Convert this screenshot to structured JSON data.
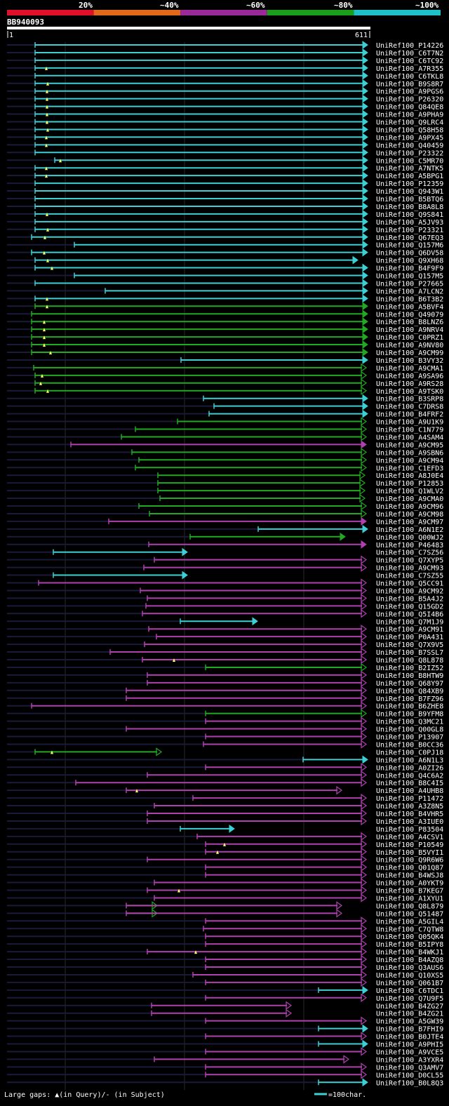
{
  "query": {
    "id": "BB940093",
    "start_label": "1",
    "end_label": "611",
    "length": 611
  },
  "legend": {
    "identity_bins": [
      {
        "label": "20%",
        "color": "#e0102a"
      },
      {
        "label": "~40%",
        "color": "#e06a1a"
      },
      {
        "label": "~60%",
        "color": "#9a2a9a"
      },
      {
        "label": "~80%",
        "color": "#1aa01a"
      },
      {
        "label": "~100%",
        "color": "#20c0c8"
      }
    ]
  },
  "colors": {
    "cyan": "#3ccfd4",
    "green": "#22a822",
    "magenta": "#b040b0",
    "guide": "#1a1a3a",
    "gap": "#ffff66"
  },
  "footer": {
    "text": "Large gaps: ▲(in Query)/- (in Subject)",
    "scale_text": "=100char."
  },
  "hits": [
    {
      "name": "UniRef100_P14226",
      "s": 50,
      "e": 522,
      "c": "cyan",
      "a": 1,
      "g": []
    },
    {
      "name": "UniRef100_C6T7N2",
      "s": 50,
      "e": 522,
      "c": "cyan",
      "a": 1,
      "g": []
    },
    {
      "name": "UniRef100_C6TC92",
      "s": 50,
      "e": 522,
      "c": "cyan",
      "a": 1,
      "g": []
    },
    {
      "name": "UniRef100_A7R355",
      "s": 50,
      "e": 522,
      "c": "cyan",
      "a": 1,
      "g": [
        66
      ]
    },
    {
      "name": "UniRef100_C6TKL8",
      "s": 50,
      "e": 522,
      "c": "cyan",
      "a": 1,
      "g": []
    },
    {
      "name": "UniRef100_B9S8R7",
      "s": 50,
      "e": 522,
      "c": "cyan",
      "a": 1,
      "g": [
        68
      ]
    },
    {
      "name": "UniRef100_A9PGS6",
      "s": 50,
      "e": 522,
      "c": "cyan",
      "a": 1,
      "g": [
        67
      ]
    },
    {
      "name": "UniRef100_P26320",
      "s": 50,
      "e": 522,
      "c": "cyan",
      "a": 1,
      "g": [
        67
      ]
    },
    {
      "name": "UniRef100_Q84QE8",
      "s": 50,
      "e": 522,
      "c": "cyan",
      "a": 1,
      "g": [
        67
      ]
    },
    {
      "name": "UniRef100_A9PHA9",
      "s": 50,
      "e": 522,
      "c": "cyan",
      "a": 1,
      "g": [
        67
      ]
    },
    {
      "name": "UniRef100_Q9LRC4",
      "s": 50,
      "e": 522,
      "c": "cyan",
      "a": 1,
      "g": [
        67
      ]
    },
    {
      "name": "UniRef100_Q58H58",
      "s": 50,
      "e": 522,
      "c": "cyan",
      "a": 1,
      "g": [
        68
      ]
    },
    {
      "name": "UniRef100_A9PX45",
      "s": 50,
      "e": 522,
      "c": "cyan",
      "a": 1,
      "g": [
        66
      ]
    },
    {
      "name": "UniRef100_Q40459",
      "s": 50,
      "e": 522,
      "c": "cyan",
      "a": 1,
      "g": [
        66
      ]
    },
    {
      "name": "UniRef100_P23322",
      "s": 50,
      "e": 522,
      "c": "cyan",
      "a": 1,
      "g": []
    },
    {
      "name": "UniRef100_C5MR70",
      "s": 78,
      "e": 522,
      "c": "cyan",
      "a": 1,
      "g": [
        86
      ]
    },
    {
      "name": "UniRef100_A7NTK5",
      "s": 50,
      "e": 522,
      "c": "cyan",
      "a": 1,
      "g": [
        66
      ]
    },
    {
      "name": "UniRef100_A5BPG1",
      "s": 50,
      "e": 522,
      "c": "cyan",
      "a": 1,
      "g": [
        66
      ]
    },
    {
      "name": "UniRef100_P12359",
      "s": 50,
      "e": 522,
      "c": "cyan",
      "a": 1,
      "g": []
    },
    {
      "name": "UniRef100_Q943W1",
      "s": 50,
      "e": 522,
      "c": "cyan",
      "a": 1,
      "g": []
    },
    {
      "name": "UniRef100_B5BTQ6",
      "s": 50,
      "e": 522,
      "c": "cyan",
      "a": 1,
      "g": []
    },
    {
      "name": "UniRef100_B8A8L8",
      "s": 50,
      "e": 522,
      "c": "cyan",
      "a": 1,
      "g": []
    },
    {
      "name": "UniRef100_Q9S841",
      "s": 50,
      "e": 522,
      "c": "cyan",
      "a": 1,
      "g": [
        67
      ]
    },
    {
      "name": "UniRef100_A5JV93",
      "s": 50,
      "e": 522,
      "c": "cyan",
      "a": 1,
      "g": []
    },
    {
      "name": "UniRef100_P23321",
      "s": 50,
      "e": 522,
      "c": "cyan",
      "a": 1,
      "g": [
        68
      ]
    },
    {
      "name": "UniRef100_Q67EQ3",
      "s": 45,
      "e": 522,
      "c": "cyan",
      "a": 1,
      "g": [
        64
      ]
    },
    {
      "name": "UniRef100_Q157M6",
      "s": 106,
      "e": 522,
      "c": "cyan",
      "a": 1,
      "g": []
    },
    {
      "name": "UniRef100_Q6DV58",
      "s": 45,
      "e": 522,
      "c": "cyan",
      "a": 1,
      "g": [
        63
      ]
    },
    {
      "name": "UniRef100_Q9XH68",
      "s": 50,
      "e": 508,
      "c": "cyan",
      "a": 1,
      "g": [
        68
      ]
    },
    {
      "name": "UniRef100_B4F9F9",
      "s": 50,
      "e": 522,
      "c": "cyan",
      "a": 1,
      "g": [
        74
      ]
    },
    {
      "name": "UniRef100_Q157M5",
      "s": 106,
      "e": 522,
      "c": "cyan",
      "a": 1,
      "g": []
    },
    {
      "name": "UniRef100_P27665",
      "s": 50,
      "e": 522,
      "c": "cyan",
      "a": 1,
      "g": []
    },
    {
      "name": "UniRef100_A7LCN2",
      "s": 150,
      "e": 522,
      "c": "cyan",
      "a": 1,
      "g": []
    },
    {
      "name": "UniRef100_B6T3B2",
      "s": 50,
      "e": 522,
      "c": "cyan",
      "a": 1,
      "g": [
        67
      ]
    },
    {
      "name": "UniRef100_A5BVF4",
      "s": 50,
      "e": 522,
      "c": "green",
      "a": 1,
      "g": [
        67
      ]
    },
    {
      "name": "UniRef100_Q49079",
      "s": 45,
      "e": 522,
      "c": "green",
      "a": 1,
      "g": []
    },
    {
      "name": "UniRef100_B8LNZ6",
      "s": 45,
      "e": 522,
      "c": "green",
      "a": 1,
      "g": [
        63
      ]
    },
    {
      "name": "UniRef100_A9NRV4",
      "s": 45,
      "e": 522,
      "c": "green",
      "a": 1,
      "g": [
        63
      ]
    },
    {
      "name": "UniRef100_C0PRZ1",
      "s": 45,
      "e": 522,
      "c": "green",
      "a": 1,
      "g": [
        63
      ]
    },
    {
      "name": "UniRef100_A9NV80",
      "s": 45,
      "e": 522,
      "c": "green",
      "a": 1,
      "g": [
        63
      ]
    },
    {
      "name": "UniRef100_A9CM99",
      "s": 45,
      "e": 522,
      "c": "green",
      "a": 1,
      "g": [
        72
      ]
    },
    {
      "name": "UniRef100_B3VY32",
      "s": 258,
      "e": 522,
      "c": "cyan",
      "a": 1,
      "g": []
    },
    {
      "name": "UniRef100_A9CMA1",
      "s": 48,
      "e": 520,
      "c": "green",
      "a": 0,
      "g": []
    },
    {
      "name": "UniRef100_A9SA96",
      "s": 50,
      "e": 520,
      "c": "green",
      "a": 0,
      "g": [
        60
      ]
    },
    {
      "name": "UniRef100_A9RS28",
      "s": 50,
      "e": 520,
      "c": "green",
      "a": 0,
      "g": [
        58
      ]
    },
    {
      "name": "UniRef100_A9TSK0",
      "s": 50,
      "e": 520,
      "c": "green",
      "a": 0,
      "g": [
        68
      ]
    },
    {
      "name": "UniRef100_B3SRP8",
      "s": 290,
      "e": 522,
      "c": "cyan",
      "a": 1,
      "g": []
    },
    {
      "name": "UniRef100_C7DRS8",
      "s": 305,
      "e": 522,
      "c": "cyan",
      "a": 1,
      "g": []
    },
    {
      "name": "UniRef100_B4FRF2",
      "s": 298,
      "e": 522,
      "c": "cyan",
      "a": 1,
      "g": []
    },
    {
      "name": "UniRef100_A9U1K9",
      "s": 253,
      "e": 520,
      "c": "green",
      "a": 0,
      "g": []
    },
    {
      "name": "UniRef100_C1N779",
      "s": 193,
      "e": 520,
      "c": "green",
      "a": 0,
      "g": []
    },
    {
      "name": "UniRef100_A4SAM4",
      "s": 173,
      "e": 520,
      "c": "green",
      "a": 0,
      "g": []
    },
    {
      "name": "UniRef100_A9CM95",
      "s": 101,
      "e": 520,
      "c": "magenta",
      "a": 1,
      "g": []
    },
    {
      "name": "UniRef100_A9SBN6",
      "s": 188,
      "e": 520,
      "c": "green",
      "a": 0,
      "g": []
    },
    {
      "name": "UniRef100_A9CM94",
      "s": 198,
      "e": 520,
      "c": "green",
      "a": 0,
      "g": []
    },
    {
      "name": "UniRef100_C1EFD3",
      "s": 193,
      "e": 520,
      "c": "green",
      "a": 0,
      "g": []
    },
    {
      "name": "UniRef100_A8J0E4",
      "s": 225,
      "e": 518,
      "c": "green",
      "a": 0,
      "g": []
    },
    {
      "name": "UniRef100_P12853",
      "s": 225,
      "e": 518,
      "c": "green",
      "a": 0,
      "g": []
    },
    {
      "name": "UniRef100_Q1WLV2",
      "s": 225,
      "e": 518,
      "c": "green",
      "a": 0,
      "g": []
    },
    {
      "name": "UniRef100_A9CMA0",
      "s": 228,
      "e": 518,
      "c": "green",
      "a": 0,
      "g": []
    },
    {
      "name": "UniRef100_A9CM96",
      "s": 198,
      "e": 520,
      "c": "green",
      "a": 0,
      "g": []
    },
    {
      "name": "UniRef100_A9CM98",
      "s": 213,
      "e": 520,
      "c": "green",
      "a": 0,
      "g": []
    },
    {
      "name": "UniRef100_A9CM97",
      "s": 155,
      "e": 520,
      "c": "magenta",
      "a": 1,
      "g": []
    },
    {
      "name": "UniRef100_A6N1E2",
      "s": 368,
      "e": 522,
      "c": "cyan",
      "a": 1,
      "g": []
    },
    {
      "name": "UniRef100_Q00WJ2",
      "s": 271,
      "e": 490,
      "c": "green",
      "a": 1,
      "g": []
    },
    {
      "name": "UniRef100_P46483",
      "s": 212,
      "e": 520,
      "c": "magenta",
      "a": 1,
      "g": []
    },
    {
      "name": "UniRef100_C7SZ56",
      "s": 76,
      "e": 265,
      "c": "cyan",
      "a": 1,
      "g": []
    },
    {
      "name": "UniRef100_Q7XYP5",
      "s": 220,
      "e": 520,
      "c": "magenta",
      "a": 0,
      "g": []
    },
    {
      "name": "UniRef100_A9CM93",
      "s": 205,
      "e": 520,
      "c": "magenta",
      "a": 0,
      "g": []
    },
    {
      "name": "UniRef100_C7SZ55",
      "s": 76,
      "e": 265,
      "c": "cyan",
      "a": 1,
      "g": []
    },
    {
      "name": "UniRef100_Q5CC91",
      "s": 55,
      "e": 520,
      "c": "magenta",
      "a": 0,
      "g": []
    },
    {
      "name": "UniRef100_A9CM92",
      "s": 200,
      "e": 520,
      "c": "magenta",
      "a": 0,
      "g": []
    },
    {
      "name": "UniRef100_B5A4J2",
      "s": 210,
      "e": 520,
      "c": "magenta",
      "a": 0,
      "g": []
    },
    {
      "name": "UniRef100_Q15GD2",
      "s": 208,
      "e": 520,
      "c": "magenta",
      "a": 0,
      "g": []
    },
    {
      "name": "UniRef100_Q5I4B6",
      "s": 203,
      "e": 520,
      "c": "magenta",
      "a": 0,
      "g": []
    },
    {
      "name": "UniRef100_Q7M1J9",
      "s": 257,
      "e": 365,
      "c": "cyan",
      "a": 1,
      "g": []
    },
    {
      "name": "UniRef100_A9CM91",
      "s": 212,
      "e": 520,
      "c": "magenta",
      "a": 0,
      "g": []
    },
    {
      "name": "UniRef100_P0A431",
      "s": 223,
      "e": 520,
      "c": "magenta",
      "a": 0,
      "g": []
    },
    {
      "name": "UniRef100_Q7X9V5",
      "s": 206,
      "e": 520,
      "c": "magenta",
      "a": 0,
      "g": []
    },
    {
      "name": "UniRef100_B7SSL7",
      "s": 157,
      "e": 520,
      "c": "magenta",
      "a": 0,
      "g": []
    },
    {
      "name": "UniRef100_Q8L878",
      "s": 203,
      "e": 520,
      "c": "magenta",
      "a": 0,
      "g": [
        248
      ]
    },
    {
      "name": "UniRef100_B2IZ52",
      "s": 293,
      "e": 520,
      "c": "green",
      "a": 0,
      "g": []
    },
    {
      "name": "UniRef100_B8HTW9",
      "s": 210,
      "e": 520,
      "c": "magenta",
      "a": 0,
      "g": []
    },
    {
      "name": "UniRef100_Q68Y97",
      "s": 210,
      "e": 520,
      "c": "magenta",
      "a": 0,
      "g": []
    },
    {
      "name": "UniRef100_Q84XB9",
      "s": 180,
      "e": 520,
      "c": "magenta",
      "a": 0,
      "g": []
    },
    {
      "name": "UniRef100_B7FZ96",
      "s": 180,
      "e": 520,
      "c": "magenta",
      "a": 0,
      "g": []
    },
    {
      "name": "UniRef100_B6ZHE8",
      "s": 45,
      "e": 520,
      "c": "magenta",
      "a": 0,
      "g": []
    },
    {
      "name": "UniRef100_B9YFM8",
      "s": 293,
      "e": 520,
      "c": "green",
      "a": 0,
      "g": []
    },
    {
      "name": "UniRef100_Q3MC21",
      "s": 293,
      "e": 520,
      "c": "magenta",
      "a": 0,
      "g": []
    },
    {
      "name": "UniRef100_Q00GL8",
      "s": 180,
      "e": 520,
      "c": "magenta",
      "a": 0,
      "g": []
    },
    {
      "name": "UniRef100_P13907",
      "s": 293,
      "e": 520,
      "c": "magenta",
      "a": 0,
      "g": []
    },
    {
      "name": "UniRef100_B0CC36",
      "s": 290,
      "e": 520,
      "c": "magenta",
      "a": 0,
      "g": []
    },
    {
      "name": "UniRef100_C0PJ18",
      "s": 50,
      "e": 228,
      "c": "green",
      "a": 0,
      "g": [
        74
      ]
    },
    {
      "name": "UniRef100_A6N1L3",
      "s": 432,
      "e": 522,
      "c": "cyan",
      "a": 1,
      "g": []
    },
    {
      "name": "UniRef100_A0ZI26",
      "s": 293,
      "e": 520,
      "c": "magenta",
      "a": 0,
      "g": []
    },
    {
      "name": "UniRef100_Q4C6A2",
      "s": 210,
      "e": 520,
      "c": "magenta",
      "a": 0,
      "g": []
    },
    {
      "name": "UniRef100_B8C4I5",
      "s": 108,
      "e": 520,
      "c": "magenta",
      "a": 0,
      "g": []
    },
    {
      "name": "UniRef100_A4UHB8",
      "s": 180,
      "e": 485,
      "c": "magenta",
      "a": 0,
      "g": [
        195
      ]
    },
    {
      "name": "UniRef100_P11472",
      "s": 275,
      "e": 520,
      "c": "magenta",
      "a": 0,
      "g": []
    },
    {
      "name": "UniRef100_A3Z8N5",
      "s": 220,
      "e": 520,
      "c": "magenta",
      "a": 0,
      "g": []
    },
    {
      "name": "UniRef100_B4VHR5",
      "s": 210,
      "e": 520,
      "c": "magenta",
      "a": 0,
      "g": []
    },
    {
      "name": "UniRef100_A3IUE0",
      "s": 210,
      "e": 520,
      "c": "magenta",
      "a": 0,
      "g": []
    },
    {
      "name": "UniRef100_P83504",
      "s": 257,
      "e": 332,
      "c": "cyan",
      "a": 1,
      "g": []
    },
    {
      "name": "UniRef100_A4CSV1",
      "s": 281,
      "e": 520,
      "c": "magenta",
      "a": 0,
      "g": []
    },
    {
      "name": "UniRef100_P10549",
      "s": 293,
      "e": 520,
      "c": "magenta",
      "a": 0,
      "g": [
        320
      ]
    },
    {
      "name": "UniRef100_B5VYI1",
      "s": 293,
      "e": 520,
      "c": "magenta",
      "a": 0,
      "g": [
        310
      ]
    },
    {
      "name": "UniRef100_Q9R6W6",
      "s": 210,
      "e": 520,
      "c": "magenta",
      "a": 0,
      "g": []
    },
    {
      "name": "UniRef100_Q01Q87",
      "s": 293,
      "e": 520,
      "c": "magenta",
      "a": 0,
      "g": []
    },
    {
      "name": "UniRef100_B4WSJ8",
      "s": 293,
      "e": 520,
      "c": "magenta",
      "a": 0,
      "g": []
    },
    {
      "name": "UniRef100_A0YKT9",
      "s": 220,
      "e": 520,
      "c": "magenta",
      "a": 0,
      "g": []
    },
    {
      "name": "UniRef100_B7KEG7",
      "s": 210,
      "e": 520,
      "c": "magenta",
      "a": 0,
      "g": [
        255
      ]
    },
    {
      "name": "UniRef100_A1XYU1",
      "s": 220,
      "e": 520,
      "c": "magenta",
      "a": 0,
      "g": []
    },
    {
      "name": "UniRef100_Q8L879",
      "s": 180,
      "e": 485,
      "c": "magenta",
      "a": 0,
      "g": [],
      "pre": [
        180,
        222,
        "green"
      ]
    },
    {
      "name": "UniRef100_Q51487",
      "s": 180,
      "e": 485,
      "c": "magenta",
      "a": 0,
      "g": [],
      "pre": [
        180,
        222,
        "green"
      ]
    },
    {
      "name": "UniRef100_A5GIL4",
      "s": 293,
      "e": 520,
      "c": "magenta",
      "a": 0,
      "g": []
    },
    {
      "name": "UniRef100_C7QTW8",
      "s": 290,
      "e": 520,
      "c": "magenta",
      "a": 0,
      "g": []
    },
    {
      "name": "UniRef100_Q05QK4",
      "s": 293,
      "e": 520,
      "c": "magenta",
      "a": 0,
      "g": []
    },
    {
      "name": "UniRef100_B5IPY8",
      "s": 293,
      "e": 520,
      "c": "magenta",
      "a": 0,
      "g": []
    },
    {
      "name": "UniRef100_B4WKJ1",
      "s": 210,
      "e": 520,
      "c": "magenta",
      "a": 0,
      "g": [
        279
      ]
    },
    {
      "name": "UniRef100_B4AZQ8",
      "s": 293,
      "e": 520,
      "c": "magenta",
      "a": 0,
      "g": []
    },
    {
      "name": "UniRef100_Q3AUS6",
      "s": 293,
      "e": 520,
      "c": "magenta",
      "a": 0,
      "g": []
    },
    {
      "name": "UniRef100_Q10XS5",
      "s": 275,
      "e": 520,
      "c": "magenta",
      "a": 0,
      "g": []
    },
    {
      "name": "UniRef100_Q061B7",
      "s": 293,
      "e": 520,
      "c": "magenta",
      "a": 0,
      "g": []
    },
    {
      "name": "UniRef100_C6TDC1",
      "s": 454,
      "e": 522,
      "c": "cyan",
      "a": 1,
      "g": []
    },
    {
      "name": "UniRef100_Q7U9F5",
      "s": 293,
      "e": 520,
      "c": "magenta",
      "a": 0,
      "g": []
    },
    {
      "name": "UniRef100_B4ZG27",
      "s": 216,
      "e": 413,
      "c": "magenta",
      "a": 0,
      "g": []
    },
    {
      "name": "UniRef100_B4ZG21",
      "s": 216,
      "e": 413,
      "c": "magenta",
      "a": 0,
      "g": []
    },
    {
      "name": "UniRef100_A5GW39",
      "s": 293,
      "e": 520,
      "c": "magenta",
      "a": 0,
      "g": []
    },
    {
      "name": "UniRef100_B7FHI9",
      "s": 454,
      "e": 522,
      "c": "cyan",
      "a": 1,
      "g": []
    },
    {
      "name": "UniRef100_B0JTE4",
      "s": 293,
      "e": 520,
      "c": "magenta",
      "a": 0,
      "g": []
    },
    {
      "name": "UniRef100_A9PHI5",
      "s": 454,
      "e": 522,
      "c": "cyan",
      "a": 1,
      "g": []
    },
    {
      "name": "UniRef100_A9VCE5",
      "s": 293,
      "e": 520,
      "c": "magenta",
      "a": 0,
      "g": []
    },
    {
      "name": "UniRef100_A3YXR4",
      "s": 220,
      "e": 495,
      "c": "magenta",
      "a": 0,
      "g": []
    },
    {
      "name": "UniRef100_Q3AMV7",
      "s": 293,
      "e": 520,
      "c": "magenta",
      "a": 0,
      "g": []
    },
    {
      "name": "UniRef100_D0CL55",
      "s": 293,
      "e": 520,
      "c": "magenta",
      "a": 0,
      "g": []
    },
    {
      "name": "UniRef100_B0L8Q3",
      "s": 454,
      "e": 522,
      "c": "cyan",
      "a": 1,
      "g": []
    }
  ]
}
